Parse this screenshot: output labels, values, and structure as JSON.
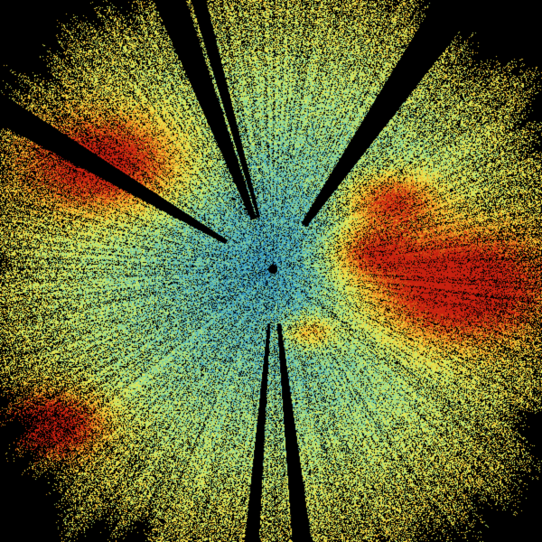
{
  "image": {
    "kind": "radar-ppi-scan",
    "background_color": "#000000",
    "color_scale": [
      "#1f78b4",
      "#3fa7c9",
      "#7fd0a0",
      "#c8ec6a",
      "#f2e84a",
      "#f0b02a",
      "#e07018",
      "#c82010"
    ]
  }
}
